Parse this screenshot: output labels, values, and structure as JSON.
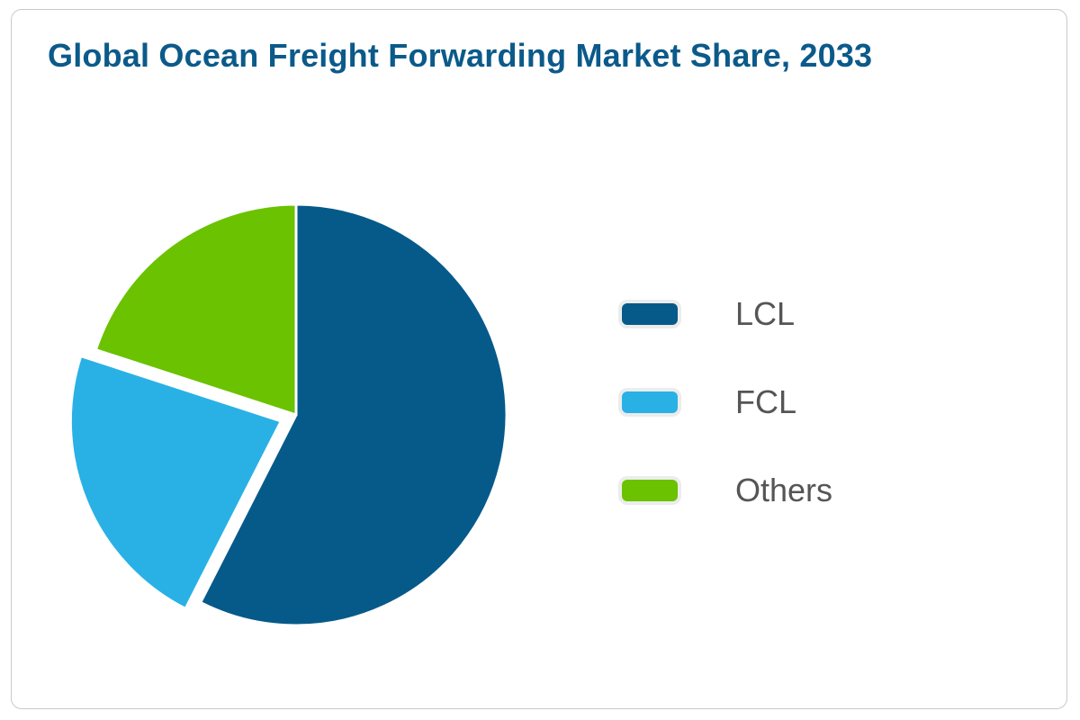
{
  "chart_data": {
    "type": "pie",
    "title": "Global Ocean Freight Forwarding Market Share, 2033",
    "series": [
      {
        "name": "LCL",
        "value": 57.5,
        "color": "#065a8a",
        "exploded": false
      },
      {
        "name": "FCL",
        "value": 22.5,
        "color": "#29b1e6",
        "exploded": true
      },
      {
        "name": "Others",
        "value": 20.0,
        "color": "#6ac200",
        "exploded": false
      }
    ],
    "legend_position": "right"
  }
}
